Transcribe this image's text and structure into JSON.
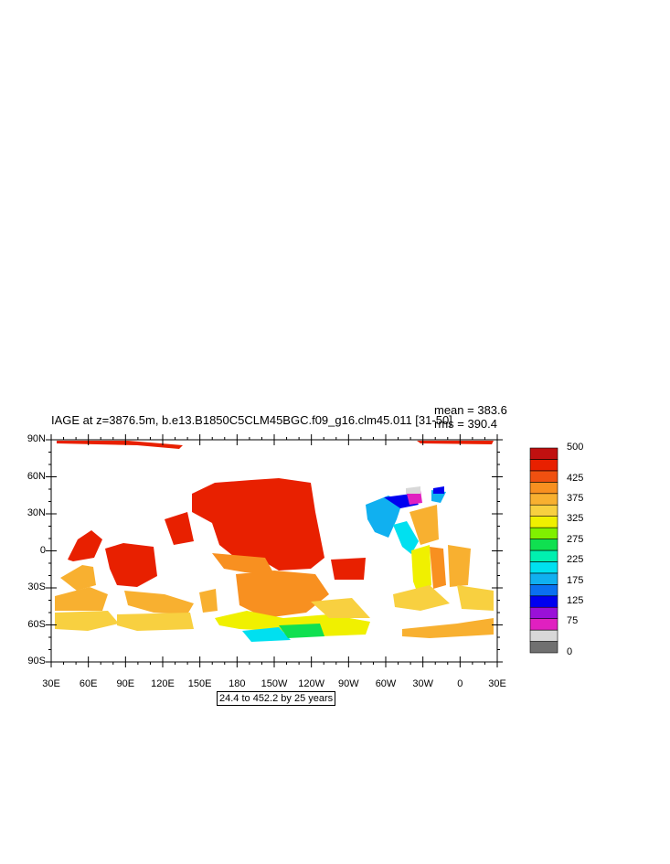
{
  "title": "IAGE at z=3876.5m, b.e13.B1850C5CLM45BGC.f09_g16.clm45.011 [31-50]",
  "stats": {
    "mean": "mean = 383.6",
    "rms": "rms = 390.4"
  },
  "range_note": "24.4 to 452.2 by 25 years",
  "y_ticks": [
    "90N",
    "60N",
    "30N",
    "0",
    "30S",
    "60S",
    "90S"
  ],
  "x_ticks": [
    "30E",
    "60E",
    "90E",
    "120E",
    "150E",
    "180",
    "150W",
    "120W",
    "90W",
    "60W",
    "30W",
    "0",
    "30E"
  ],
  "colorbar": {
    "labels": [
      {
        "text": "500",
        "level": 500
      },
      {
        "text": "425",
        "level": 425
      },
      {
        "text": "375",
        "level": 375
      },
      {
        "text": "325",
        "level": 325
      },
      {
        "text": "275",
        "level": 275
      },
      {
        "text": "225",
        "level": 225
      },
      {
        "text": "175",
        "level": 175
      },
      {
        "text": "125",
        "level": 125
      },
      {
        "text": "75",
        "level": 75
      },
      {
        "text": "0",
        "level": 0
      }
    ],
    "colors": [
      "#707070",
      "#d8d8d8",
      "#e020c0",
      "#9a10d8",
      "#0000f0",
      "#0a70f0",
      "#10b0f0",
      "#00e0f0",
      "#00f0b0",
      "#10e050",
      "#80f000",
      "#f0f000",
      "#f8d040",
      "#f8b030",
      "#f89020",
      "#f05010",
      "#e82000",
      "#c01010"
    ]
  }
}
